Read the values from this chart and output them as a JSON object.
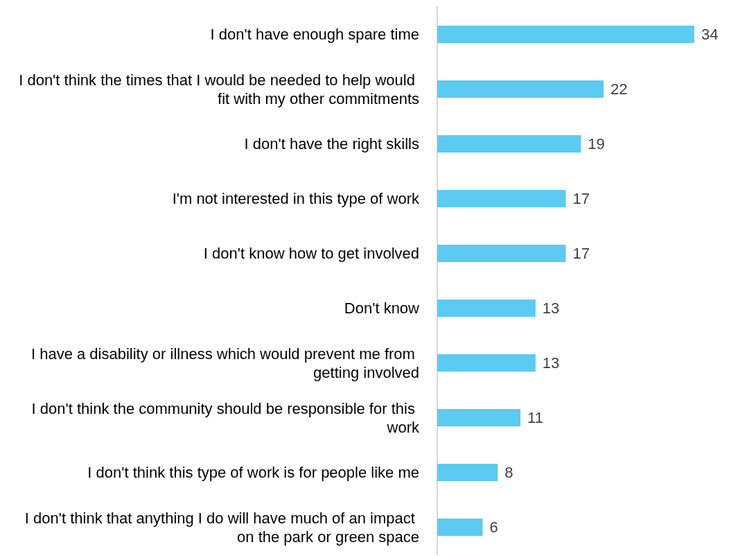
{
  "chart_data": {
    "type": "bar",
    "orientation": "horizontal",
    "data_labels": true,
    "categories": [
      "I don't have enough spare time",
      "I don't think the times that I would be needed to help would fit with my other commitments",
      "I don't have the right skills",
      "I'm not interested in this type of work",
      "I don't know how to get involved",
      "Don't know",
      "I have a disability or illness which would prevent me from getting involved",
      "I don't think the community should be responsible for this work",
      "I don't think this type of work is for people like me",
      "I don't think that anything I do will have much of an impact on the park or green space"
    ],
    "values": [
      34,
      22,
      19,
      17,
      17,
      13,
      13,
      11,
      8,
      6
    ],
    "color": "#5bcbf2"
  }
}
